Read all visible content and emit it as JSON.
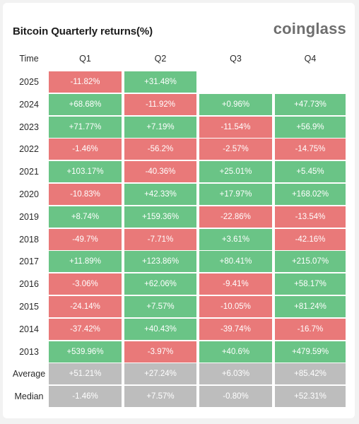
{
  "header": {
    "title": "Bitcoin Quarterly returns(%)",
    "brand": "coinglass"
  },
  "colors": {
    "positive": "#6ac486",
    "negative": "#e97979",
    "summary": "#bdbdbd"
  },
  "chart_data": {
    "type": "table",
    "title": "Bitcoin Quarterly returns(%)",
    "columns": [
      "Time",
      "Q1",
      "Q2",
      "Q3",
      "Q4"
    ],
    "rows": [
      {
        "label": "2025",
        "cells": [
          "-11.82%",
          "+31.48%",
          null,
          null
        ]
      },
      {
        "label": "2024",
        "cells": [
          "+68.68%",
          "-11.92%",
          "+0.96%",
          "+47.73%"
        ]
      },
      {
        "label": "2023",
        "cells": [
          "+71.77%",
          "+7.19%",
          "-11.54%",
          "+56.9%"
        ]
      },
      {
        "label": "2022",
        "cells": [
          "-1.46%",
          "-56.2%",
          "-2.57%",
          "-14.75%"
        ]
      },
      {
        "label": "2021",
        "cells": [
          "+103.17%",
          "-40.36%",
          "+25.01%",
          "+5.45%"
        ]
      },
      {
        "label": "2020",
        "cells": [
          "-10.83%",
          "+42.33%",
          "+17.97%",
          "+168.02%"
        ]
      },
      {
        "label": "2019",
        "cells": [
          "+8.74%",
          "+159.36%",
          "-22.86%",
          "-13.54%"
        ]
      },
      {
        "label": "2018",
        "cells": [
          "-49.7%",
          "-7.71%",
          "+3.61%",
          "-42.16%"
        ]
      },
      {
        "label": "2017",
        "cells": [
          "+11.89%",
          "+123.86%",
          "+80.41%",
          "+215.07%"
        ]
      },
      {
        "label": "2016",
        "cells": [
          "-3.06%",
          "+62.06%",
          "-9.41%",
          "+58.17%"
        ]
      },
      {
        "label": "2015",
        "cells": [
          "-24.14%",
          "+7.57%",
          "-10.05%",
          "+81.24%"
        ]
      },
      {
        "label": "2014",
        "cells": [
          "-37.42%",
          "+40.43%",
          "-39.74%",
          "-16.7%"
        ]
      },
      {
        "label": "2013",
        "cells": [
          "+539.96%",
          "-3.97%",
          "+40.6%",
          "+479.59%"
        ]
      }
    ],
    "summary": [
      {
        "label": "Average",
        "cells": [
          "+51.21%",
          "+27.24%",
          "+6.03%",
          "+85.42%"
        ]
      },
      {
        "label": "Median",
        "cells": [
          "-1.46%",
          "+7.57%",
          "-0.80%",
          "+52.31%"
        ]
      }
    ]
  }
}
